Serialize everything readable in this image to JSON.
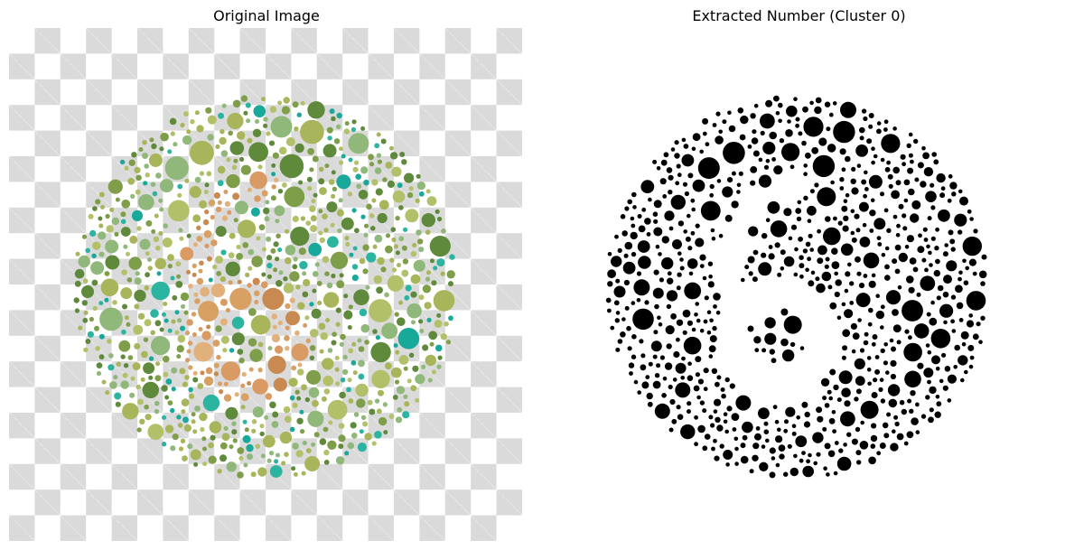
{
  "panels": {
    "left": {
      "title": "Original Image"
    },
    "right": {
      "title": "Extracted Number (Cluster 0)"
    }
  },
  "plate": {
    "colors": {
      "background_dots": [
        "#a9b55a",
        "#7f9e4a",
        "#5f8a3c",
        "#8fb87a",
        "#b3c06a"
      ],
      "teal_dots": [
        "#19a99a",
        "#2bb5a0"
      ],
      "figure_dots": [
        "#d8a062",
        "#e2b07a",
        "#c98a52",
        "#d99a64"
      ],
      "checker": "#dadada",
      "extract_fill": "#000000",
      "extract_background": "#ffffff"
    }
  }
}
